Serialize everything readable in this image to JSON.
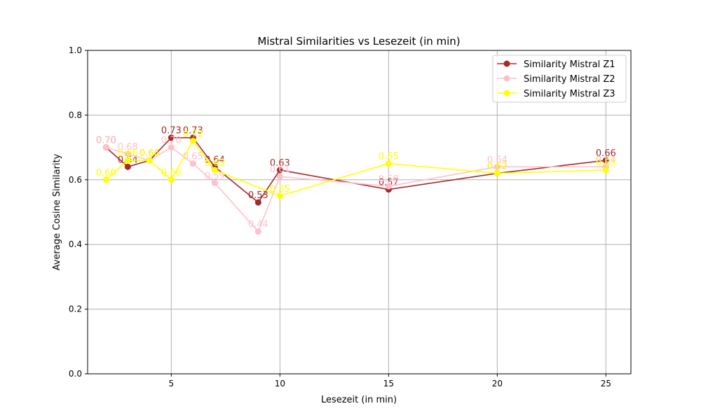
{
  "chart_data": {
    "type": "line",
    "title": "Mistral Similarities vs Lesezeit (in min)",
    "xlabel": "Lesezeit (in min)",
    "ylabel": "Average Cosine Similarity",
    "xlim": [
      1.15,
      26.15
    ],
    "ylim": [
      0.0,
      1.0
    ],
    "xticks": [
      5,
      10,
      15,
      20,
      25
    ],
    "yticks": [
      0.0,
      0.2,
      0.4,
      0.6,
      0.8,
      1.0
    ],
    "grid": true,
    "legend_position": "top-right",
    "x": [
      2,
      3,
      4,
      5,
      6,
      7,
      9,
      10,
      15,
      20,
      25
    ],
    "series": [
      {
        "name": "Similarity Mistral Z1",
        "color": "#a52a2a",
        "values": [
          0.7,
          0.64,
          0.66,
          0.73,
          0.73,
          0.64,
          0.53,
          0.63,
          0.57,
          0.62,
          0.66
        ]
      },
      {
        "name": "Similarity Mistral Z2",
        "color": "#ffc0cb",
        "values": [
          0.7,
          0.68,
          0.66,
          0.7,
          0.65,
          0.59,
          0.44,
          0.61,
          0.58,
          0.64,
          0.64
        ]
      },
      {
        "name": "Similarity Mistral Z3",
        "color": "#ffff00",
        "values": [
          0.6,
          0.66,
          0.66,
          0.6,
          0.72,
          0.63,
          null,
          0.55,
          0.65,
          0.62,
          0.63
        ]
      }
    ]
  }
}
